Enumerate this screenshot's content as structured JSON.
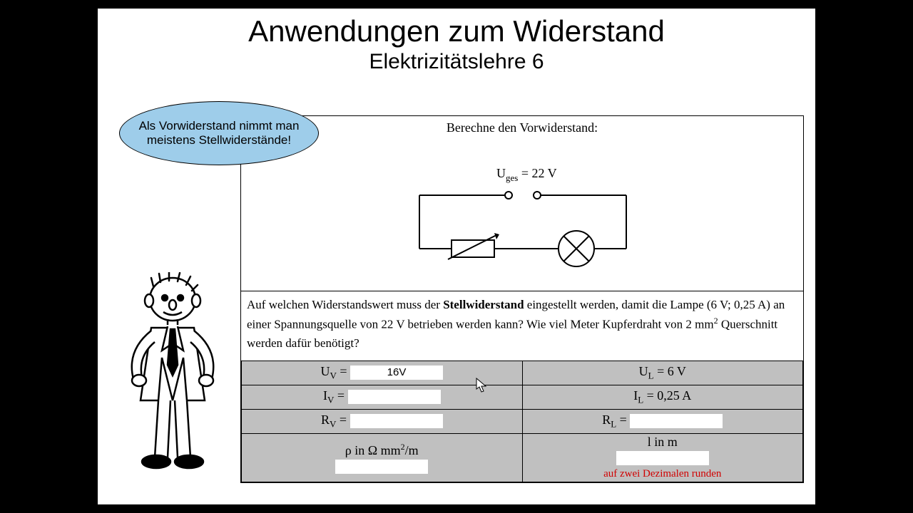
{
  "title": "Anwendungen zum Widerstand",
  "subtitle": "Elektrizitätslehre 6",
  "bubble_text": "Als Vorwiderstand nimmt man meistens Stellwiderstände!",
  "worksheet": {
    "top_title": "Berechne den Vorwiderstand:",
    "uges_label": "U",
    "uges_sub": "ges",
    "uges_value": " = 22 V",
    "question_html": "Auf welchen Widerstandswert muss der <b>Stellwiderstand</b> eingestellt werden, damit die Lampe (6 V; 0,25 A) an einer Spannungsquelle von 22 V betrieben werden kann? Wie viel Meter Kupferdraht von 2 mm<span class='sup'>2</span> Querschnitt werden dafür benötigt?",
    "rows": {
      "uv_label": "U",
      "uv_sub": "V",
      "uv_eq": " = ",
      "uv_value": "16V",
      "ul_label": "U",
      "ul_sub": "L",
      "ul_rest": " = 6 V",
      "iv_label": "I",
      "iv_sub": "V",
      "iv_eq": " = ",
      "iv_value": "",
      "il_label": "I",
      "il_sub": "L",
      "il_rest": " = 0,25 A",
      "rv_label": "R",
      "rv_sub": "V",
      "rv_eq": " = ",
      "rv_value": "",
      "rl_label": "R",
      "rl_sub": "L",
      "rl_eq": " = ",
      "rl_value": "",
      "rho_label": "ρ in Ω mm",
      "rho_sup": "2",
      "rho_rest": "/m",
      "rho_value": "",
      "len_label": "l in m",
      "len_value": "",
      "len_note": "auf zwei Dezimalen runden"
    }
  },
  "colors": {
    "bubble_fill": "#9ecdea",
    "table_bg": "#c0c0c0",
    "note_color": "#d00000",
    "page_bg": "#ffffff",
    "letterbox": "#000000"
  }
}
